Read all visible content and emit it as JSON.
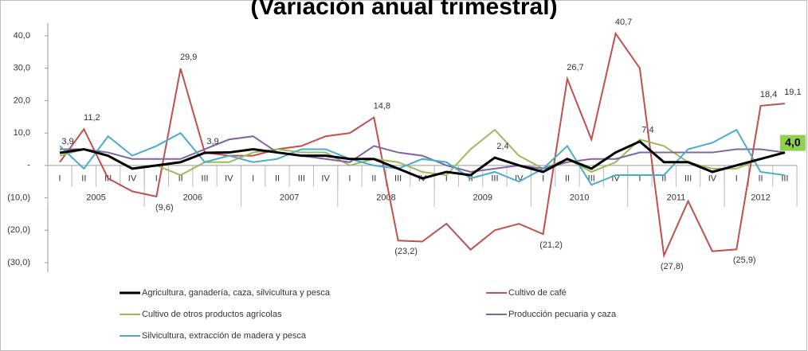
{
  "chart_data": {
    "type": "line",
    "title": "(Variación anual trimestral)",
    "categories": [
      "I",
      "II",
      "III",
      "IV",
      "I",
      "II",
      "III",
      "IV",
      "I",
      "II",
      "III",
      "IV",
      "I",
      "II",
      "III",
      "IV",
      "I",
      "II",
      "III",
      "IV",
      "I",
      "II",
      "III",
      "IV",
      "I",
      "II",
      "III",
      "IV",
      "I",
      "II",
      "III"
    ],
    "years": [
      "2005",
      "2006",
      "2007",
      "2008",
      "2009",
      "2010",
      "2011",
      "2012"
    ],
    "ylim": [
      -33,
      44
    ],
    "yticks": [
      {
        "value": 40,
        "label": "40,0"
      },
      {
        "value": 30,
        "label": "30,0"
      },
      {
        "value": 20,
        "label": "20,0"
      },
      {
        "value": 10,
        "label": "10,0"
      },
      {
        "value": 0,
        "label": "-"
      },
      {
        "value": -10,
        "label": "(10,0)"
      },
      {
        "value": -20,
        "label": "(20,0)"
      },
      {
        "value": -30,
        "label": "(30,0)"
      }
    ],
    "series": [
      {
        "name": "Agricultura, ganadería, caza, silvicultura y pesca",
        "color": "#000000",
        "values": [
          3.9,
          5,
          3,
          -1,
          0,
          1,
          3.9,
          4,
          5,
          4,
          3,
          3,
          2,
          2,
          -1,
          -4,
          -2,
          -3,
          2.4,
          0,
          -2,
          2,
          -1,
          4,
          7.4,
          1,
          1,
          -2,
          0,
          2,
          4.0
        ],
        "value_labels": [
          "3,9",
          null,
          null,
          null,
          null,
          null,
          "3,9",
          null,
          null,
          null,
          null,
          null,
          null,
          null,
          null,
          null,
          null,
          null,
          "2,4",
          null,
          null,
          null,
          null,
          null,
          "7,4",
          null,
          null,
          null,
          null,
          null,
          "4,0"
        ]
      },
      {
        "name": "Cultivo de café",
        "color": "#c0504d",
        "values": [
          1,
          11.2,
          -4,
          -8,
          -9.6,
          29.9,
          4,
          3,
          3,
          5,
          6,
          9,
          10,
          14.8,
          -23.2,
          -23.5,
          -18,
          -26,
          -20,
          -18,
          -21.2,
          26.7,
          8,
          40.7,
          30,
          -27.8,
          -11,
          -26.5,
          -25.9,
          18.4,
          19.1
        ],
        "value_labels": [
          null,
          "11,2",
          null,
          null,
          "(9,6)",
          "29,9",
          null,
          null,
          null,
          null,
          null,
          null,
          null,
          "14,8",
          "(23,2)",
          null,
          null,
          null,
          null,
          null,
          "(21,2)",
          "26,7",
          null,
          "40,7",
          null,
          "(27,8)",
          null,
          null,
          "(25,9)",
          "18,4",
          "19,1"
        ]
      },
      {
        "name": "Cultivo de otros productos agrícolas",
        "color": "#9bbb59",
        "values": [
          3,
          5,
          3,
          -1,
          0,
          -3,
          1,
          1,
          4,
          5,
          4,
          4,
          0,
          2,
          1,
          -2,
          -3,
          5,
          11,
          3,
          -1,
          2,
          -2,
          1,
          8,
          6,
          1,
          -1,
          -1,
          2,
          4
        ]
      },
      {
        "name": "Producción pecuaria y caza",
        "color": "#8064a2",
        "values": [
          5,
          5,
          4,
          2,
          2,
          2,
          5,
          8,
          9,
          4,
          3,
          2,
          1,
          6,
          4,
          3,
          0,
          -2,
          -1,
          0,
          -1,
          1,
          2,
          2,
          4,
          4,
          4,
          4,
          5,
          5,
          4
        ]
      },
      {
        "name": "Silvicultura, extracción de madera y pesca",
        "color": "#4bacc6",
        "values": [
          6,
          -1,
          9,
          3,
          6,
          10,
          1,
          3,
          1,
          2,
          5,
          5,
          2,
          0,
          -1,
          2,
          1,
          -4,
          -2,
          -5,
          -1,
          6,
          -6,
          -3,
          -3,
          -3,
          5,
          7,
          11,
          -2,
          -3
        ]
      }
    ]
  }
}
